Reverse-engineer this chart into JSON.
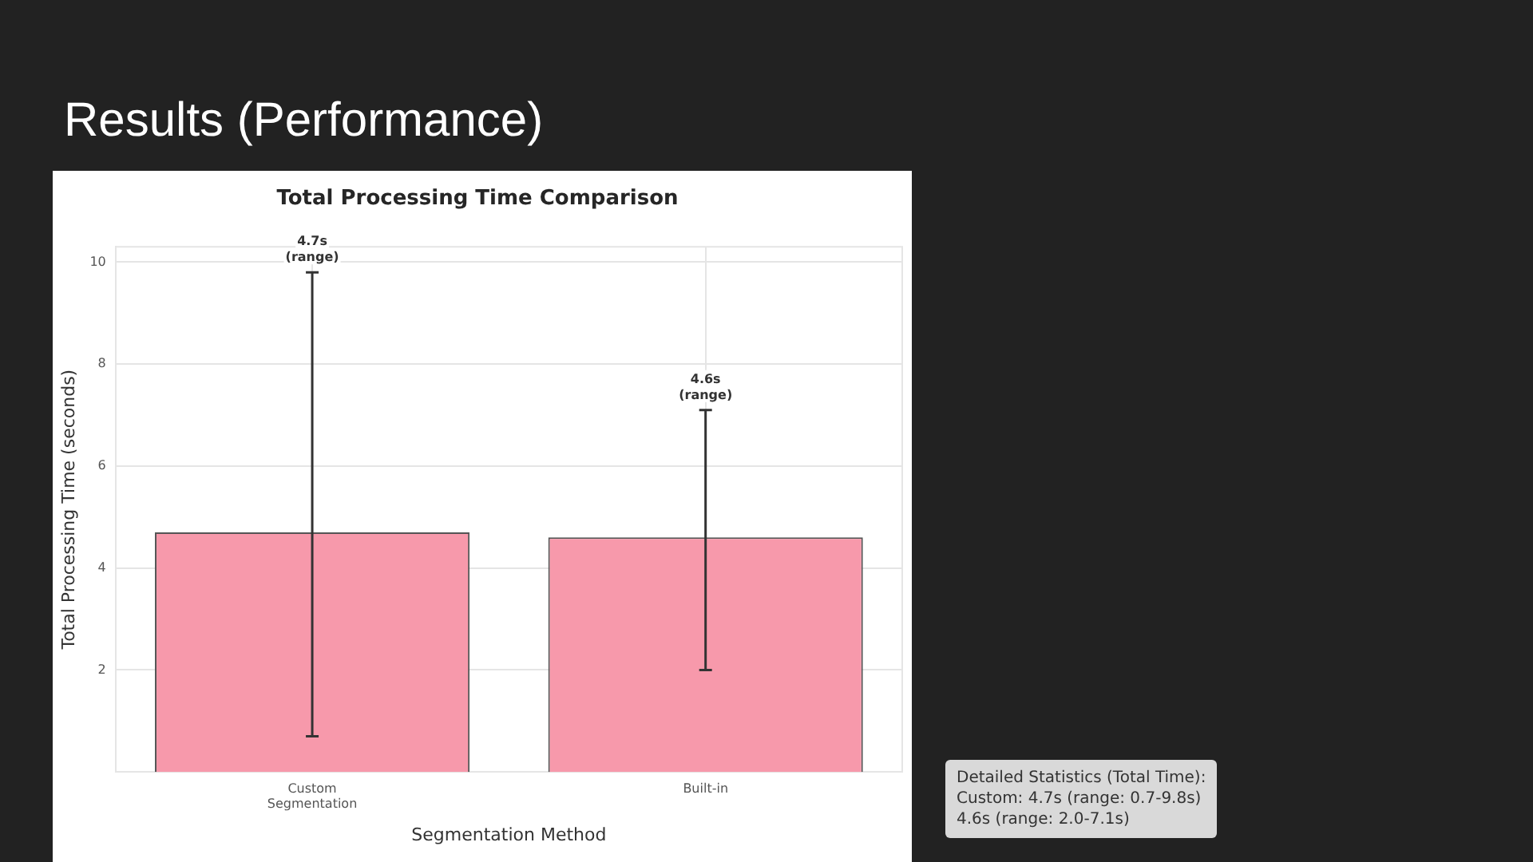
{
  "chart_data": {
    "type": "bar",
    "title": "Results (Performance)",
    "subtitle": "Total Processing Time Comparison",
    "xlabel": "Segmentation Method",
    "ylabel": "Total Processing Time (seconds)",
    "categories": [
      "Custom\nSegmentation",
      "Built-in"
    ],
    "values": [
      4.7,
      4.6
    ],
    "color": "#f799ab",
    "errors": [
      [
        0.7,
        9.8
      ],
      [
        2.0,
        7.1
      ]
    ],
    "ylim": [
      0,
      10.3
    ],
    "yticks": [
      2,
      4,
      6,
      8,
      10
    ],
    "grid": true,
    "annotations": [
      {
        "text": "4.7s\n(range)",
        "x": "Custom\nSegmentation",
        "y": 9.8
      },
      {
        "text": "4.6s\n(range)",
        "x": "Built-in",
        "y": 7.1
      },
      "Detailed Statistics (Total Time):\nCustom: 4.7s (range: 0.7-9.8s)\n4.6s (range: 2.0-7.1s)"
    ]
  }
}
